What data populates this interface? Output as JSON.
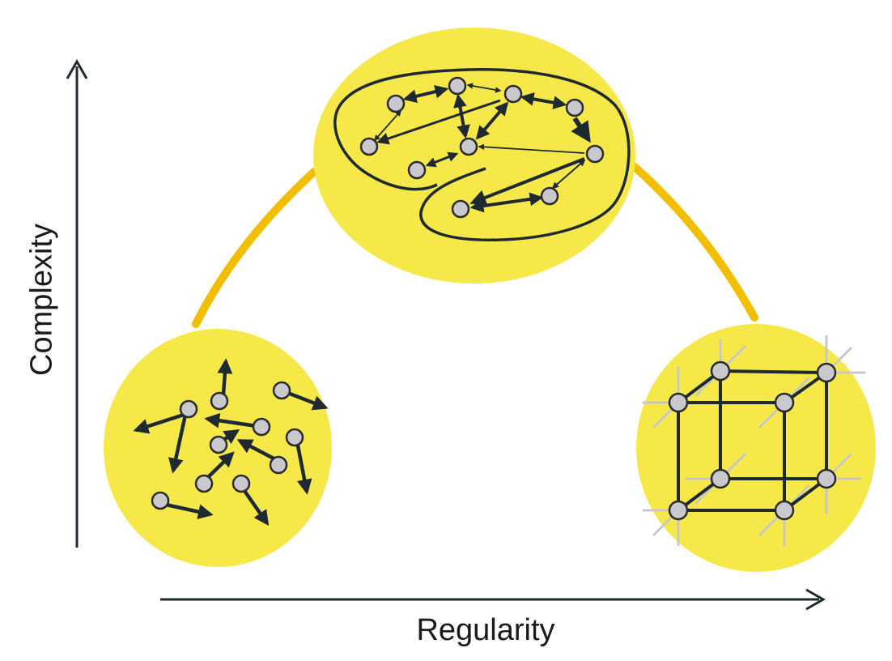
{
  "axes": {
    "x_label": "Regularity",
    "y_label": "Complexity"
  },
  "colors": {
    "blob_fill": "#f7e84a",
    "connector": "#f2be00",
    "ink": "#1e2a30",
    "node_fill": "#c9c9cd",
    "node_stroke": "#2a2a2a",
    "lattice_bond": "#c8c8c8"
  },
  "panels": [
    {
      "id": "random",
      "description_icon": "random-motion-icon"
    },
    {
      "id": "complex",
      "description_icon": "complex-network-icon"
    },
    {
      "id": "ordered",
      "description_icon": "crystal-lattice-icon"
    }
  ]
}
